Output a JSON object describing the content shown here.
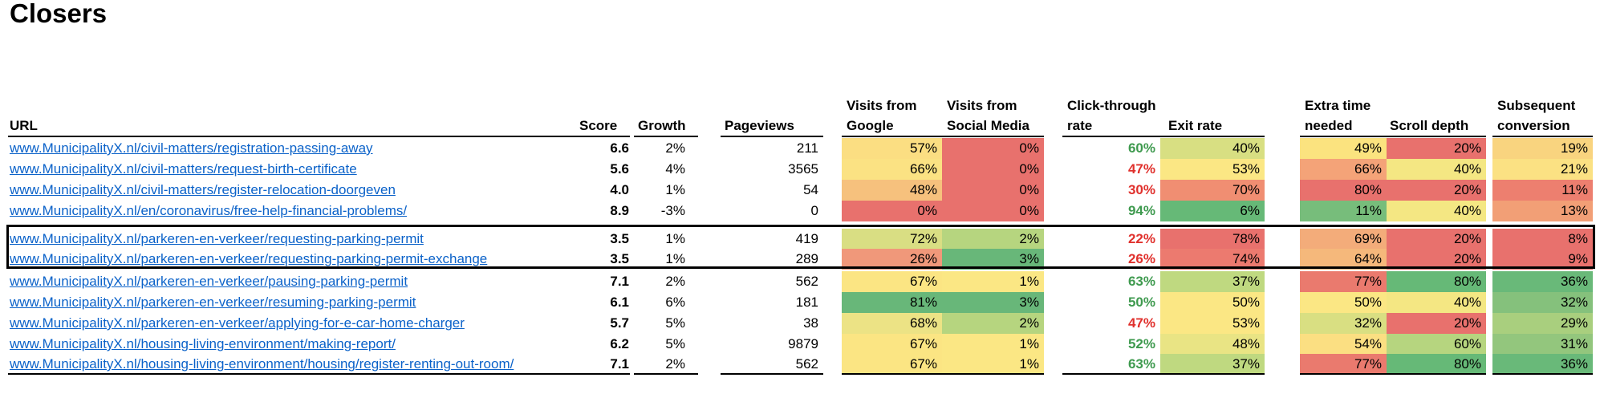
{
  "title": "Closers",
  "headers": {
    "url": "URL",
    "score": "Score",
    "growth": "Growth",
    "pageviews": "Pageviews",
    "google": [
      "Visits from",
      "Google"
    ],
    "social": [
      "Visits from",
      "Social Media"
    ],
    "ctr": [
      "Click-through",
      "rate"
    ],
    "exit": "Exit rate",
    "extra": [
      "Extra time",
      "needed"
    ],
    "scroll": "Scroll depth",
    "conv": [
      "Subsequent",
      "conversion"
    ]
  },
  "rows": [
    {
      "url": "www.MunicipalityX.nl/civil-matters/registration-passing-away",
      "score": "6.6",
      "growth": "2%",
      "pageviews": "211",
      "google": "57%",
      "social": "0%",
      "ctr": "60%",
      "exit": "40%",
      "extra": "49%",
      "scroll": "20%",
      "conv": "19%",
      "colors": {
        "google": "#fbde82",
        "social": "#e8716d",
        "ctr": "#3f9a4f",
        "exit": "#d8df82",
        "extra": "#fbe37f",
        "scroll": "#e8716d",
        "conv": "#f9d47f"
      }
    },
    {
      "url": "www.MunicipalityX.nl/civil-matters/request-birth-certificate",
      "score": "5.6",
      "growth": "4%",
      "pageviews": "3565",
      "google": "66%",
      "social": "0%",
      "ctr": "47%",
      "exit": "53%",
      "extra": "66%",
      "scroll": "40%",
      "conv": "21%",
      "colors": {
        "google": "#fbe283",
        "social": "#e8716d",
        "ctr": "#e0312d",
        "exit": "#fbe784",
        "extra": "#f4a378",
        "scroll": "#f4e783",
        "conv": "#fbe183"
      }
    },
    {
      "url": "www.MunicipalityX.nl/civil-matters/register-relocation-doorgeven",
      "score": "4.0",
      "growth": "1%",
      "pageviews": "54",
      "google": "48%",
      "social": "0%",
      "ctr": "30%",
      "exit": "70%",
      "extra": "80%",
      "scroll": "20%",
      "conv": "11%",
      "colors": {
        "google": "#f6c17d",
        "social": "#e8716d",
        "ctr": "#e0312d",
        "exit": "#f08e72",
        "extra": "#e8716d",
        "scroll": "#e8716d",
        "conv": "#ed7f6f"
      }
    },
    {
      "url": "www.MunicipalityX.nl/en/coronavirus/free-help-financial-problems/",
      "score": "8.9",
      "growth": "-3%",
      "pageviews": "0",
      "google": "0%",
      "social": "0%",
      "ctr": "94%",
      "exit": "6%",
      "extra": "11%",
      "scroll": "40%",
      "conv": "13%",
      "colors": {
        "google": "#e8716d",
        "social": "#e8716d",
        "ctr": "#3f9a4f",
        "exit": "#66b977",
        "extra": "#77bd7b",
        "scroll": "#f4e783",
        "conv": "#f29f76"
      }
    },
    {
      "url": "www.MunicipalityX.nl/parkeren-en-verkeer/requesting-parking-permit",
      "score": "3.5",
      "growth": "1%",
      "pageviews": "419",
      "google": "72%",
      "social": "2%",
      "ctr": "22%",
      "exit": "78%",
      "extra": "69%",
      "scroll": "20%",
      "conv": "8%",
      "colors": {
        "google": "#d9de83",
        "social": "#b6d57f",
        "ctr": "#e0312d",
        "exit": "#e8716d",
        "extra": "#f3ac7a",
        "scroll": "#e8716d",
        "conv": "#e8716d"
      }
    },
    {
      "url": "www.MunicipalityX.nl/parkeren-en-verkeer/requesting-parking-permit-exchange",
      "score": "3.5",
      "growth": "1%",
      "pageviews": "289",
      "google": "26%",
      "social": "3%",
      "ctr": "26%",
      "exit": "74%",
      "extra": "64%",
      "scroll": "20%",
      "conv": "9%",
      "colors": {
        "google": "#f0987a",
        "social": "#68b779",
        "ctr": "#e0312d",
        "exit": "#ec7a6f",
        "extra": "#f5b87b",
        "scroll": "#e8716d",
        "conv": "#e8716d"
      }
    },
    {
      "url": "www.MunicipalityX.nl/parkeren-en-verkeer/pausing-parking-permit",
      "score": "7.1",
      "growth": "2%",
      "pageviews": "562",
      "google": "67%",
      "social": "1%",
      "ctr": "63%",
      "exit": "37%",
      "extra": "77%",
      "scroll": "80%",
      "conv": "36%",
      "colors": {
        "google": "#fbe583",
        "social": "#fbe784",
        "ctr": "#3f9a4f",
        "exit": "#bfd980",
        "extra": "#ea7a6e",
        "scroll": "#66b977",
        "conv": "#69b979"
      }
    },
    {
      "url": "www.MunicipalityX.nl/parkeren-en-verkeer/resuming-parking-permit",
      "score": "6.1",
      "growth": "6%",
      "pageviews": "181",
      "google": "81%",
      "social": "3%",
      "ctr": "50%",
      "exit": "50%",
      "extra": "50%",
      "scroll": "40%",
      "conv": "32%",
      "colors": {
        "google": "#68b779",
        "social": "#68b779",
        "ctr": "#3f9a4f",
        "exit": "#fbe784",
        "extra": "#fbe784",
        "scroll": "#f4e783",
        "conv": "#85c17c"
      }
    },
    {
      "url": "www.MunicipalityX.nl/parkeren-en-verkeer/applying-for-e-car-home-charger",
      "score": "5.7",
      "growth": "5%",
      "pageviews": "38",
      "google": "68%",
      "social": "2%",
      "ctr": "47%",
      "exit": "53%",
      "extra": "32%",
      "scroll": "20%",
      "conv": "29%",
      "colors": {
        "google": "#ece385",
        "social": "#b6d57f",
        "ctr": "#e0312d",
        "exit": "#fbe784",
        "extra": "#d9df82",
        "scroll": "#e8716d",
        "conv": "#a9cf7e"
      }
    },
    {
      "url": "www.MunicipalityX.nl/housing-living-environment/making-report/",
      "score": "6.2",
      "growth": "5%",
      "pageviews": "9879",
      "google": "67%",
      "social": "1%",
      "ctr": "52%",
      "exit": "48%",
      "extra": "54%",
      "scroll": "60%",
      "conv": "31%",
      "colors": {
        "google": "#fbe583",
        "social": "#fbe784",
        "ctr": "#3f9a4f",
        "exit": "#e9e484",
        "extra": "#fbdf82",
        "scroll": "#b6d57f",
        "conv": "#93c67d"
      }
    },
    {
      "url": "www.MunicipalityX.nl/housing-living-environment/housing/register-renting-out-room/",
      "score": "7.1",
      "growth": "2%",
      "pageviews": "562",
      "google": "67%",
      "social": "1%",
      "ctr": "63%",
      "exit": "37%",
      "extra": "77%",
      "scroll": "80%",
      "conv": "36%",
      "colors": {
        "google": "#fbe583",
        "social": "#fbe784",
        "ctr": "#3f9a4f",
        "exit": "#bfd980",
        "extra": "#ea7a6e",
        "scroll": "#66b977",
        "conv": "#69b979"
      }
    }
  ]
}
